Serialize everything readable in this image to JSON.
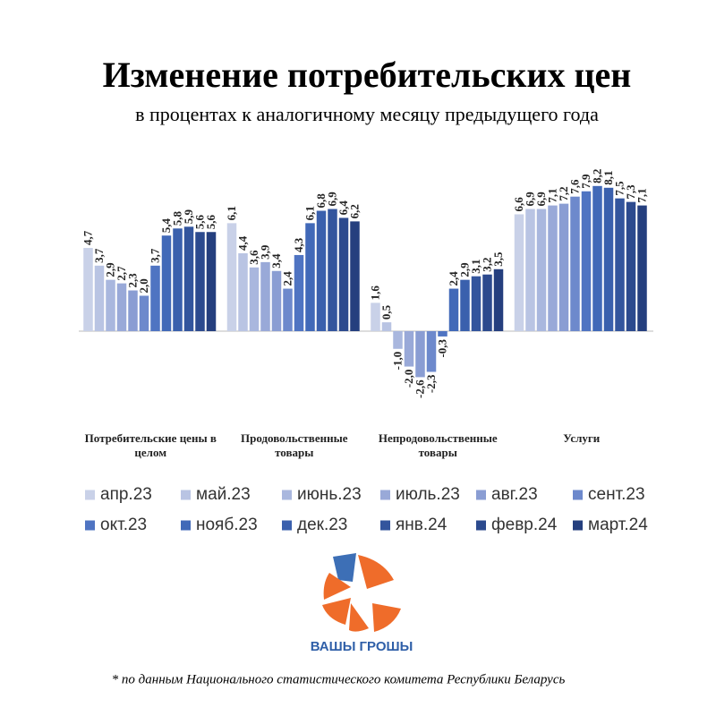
{
  "chart_data": {
    "type": "bar",
    "title": "Изменение потребительских цен",
    "subtitle": "в процентах к аналогичному месяцу предыдущего года",
    "categories": [
      "Потребительские цены в целом",
      "Продовольственные товары",
      "Непродовольственные товары",
      "Услуги"
    ],
    "ylim": [
      -4.5,
      9
    ],
    "series": [
      {
        "name": "апр.23",
        "color": "#c9d1e8",
        "values": [
          4.7,
          6.1,
          1.6,
          6.6
        ],
        "value_labels": [
          "4,7",
          "6,1",
          "1,6",
          "6,6"
        ]
      },
      {
        "name": "май.23",
        "color": "#b9c4e3",
        "values": [
          3.7,
          4.4,
          0.5,
          6.9
        ],
        "value_labels": [
          "3,7",
          "4,4",
          "0,5",
          "6,9"
        ]
      },
      {
        "name": "июнь.23",
        "color": "#a9b7de",
        "values": [
          2.9,
          3.6,
          -1.0,
          6.9
        ],
        "value_labels": [
          "2,9",
          "3,6",
          "-1,0",
          "6,9"
        ]
      },
      {
        "name": "июль.23",
        "color": "#99a9d8",
        "values": [
          2.7,
          3.9,
          -2.0,
          7.1
        ],
        "value_labels": [
          "2,7",
          "3,9",
          "-2,0",
          "7,1"
        ]
      },
      {
        "name": "авг.23",
        "color": "#8a9dd3",
        "values": [
          2.3,
          3.4,
          -2.6,
          7.2
        ],
        "value_labels": [
          "2,3",
          "3,4",
          "-2,6",
          "7,2"
        ]
      },
      {
        "name": "сент.23",
        "color": "#6d89cc",
        "values": [
          2.0,
          2.4,
          -2.3,
          7.6
        ],
        "value_labels": [
          "2,0",
          "2,4",
          "-2,3",
          "7,6"
        ]
      },
      {
        "name": "окт.23",
        "color": "#4f74c2",
        "values": [
          3.7,
          4.3,
          -0.3,
          7.9
        ],
        "value_labels": [
          "3,7",
          "4,3",
          "-0,3",
          "7,9"
        ]
      },
      {
        "name": "нояб.23",
        "color": "#4169b8",
        "values": [
          5.4,
          6.1,
          2.4,
          8.2
        ],
        "value_labels": [
          "5,4",
          "6,1",
          "2,4",
          "8,2"
        ]
      },
      {
        "name": "дек.23",
        "color": "#3a60ad",
        "values": [
          5.8,
          6.8,
          2.9,
          8.1
        ],
        "value_labels": [
          "5,8",
          "6,8",
          "2,9",
          "8,1"
        ]
      },
      {
        "name": "янв.24",
        "color": "#33559d",
        "values": [
          5.9,
          6.9,
          3.1,
          7.5
        ],
        "value_labels": [
          "5,9",
          "6,9",
          "3,1",
          "7,5"
        ]
      },
      {
        "name": "февр.24",
        "color": "#2c4a8e",
        "values": [
          5.6,
          6.4,
          3.2,
          7.3
        ],
        "value_labels": [
          "5,6",
          "6,4",
          "3,2",
          "7,3"
        ]
      },
      {
        "name": "март.24",
        "color": "#253f7e",
        "values": [
          5.6,
          6.2,
          3.5,
          7.1
        ],
        "value_labels": [
          "5,6",
          "6,2",
          "3,5",
          "7,1"
        ]
      }
    ],
    "logo_text": "ВАШЫ ГРОШЫ",
    "footnote": "* по данным Национального статистического комитета Республики Беларусь"
  }
}
